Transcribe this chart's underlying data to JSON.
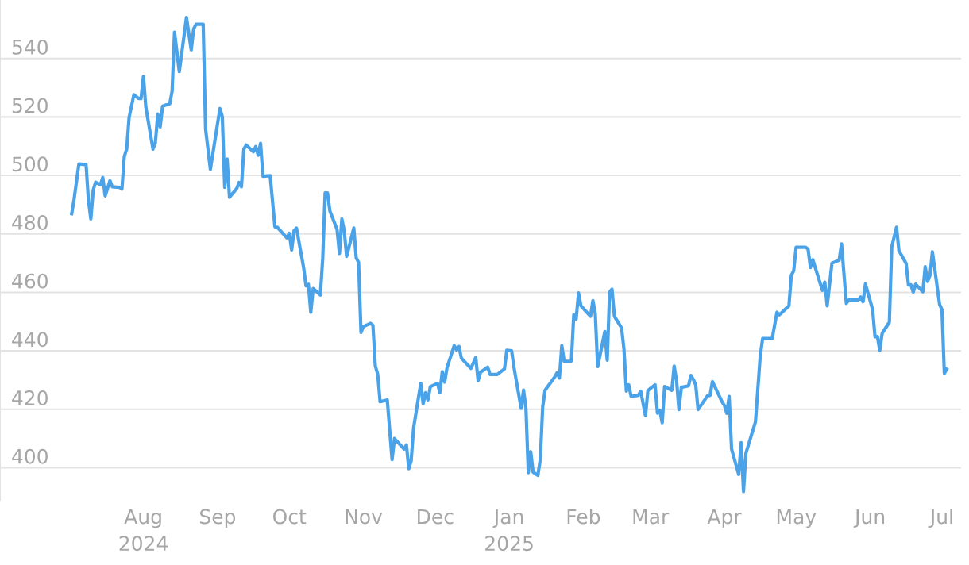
{
  "chart_data": {
    "type": "line",
    "x": [
      "2024-07-02",
      "2024-07-03",
      "2024-07-05",
      "2024-07-08",
      "2024-07-09",
      "2024-07-10",
      "2024-07-11",
      "2024-07-12",
      "2024-07-14",
      "2024-07-15",
      "2024-07-16",
      "2024-07-18",
      "2024-07-19",
      "2024-07-22",
      "2024-07-23",
      "2024-07-24",
      "2024-07-25",
      "2024-07-26",
      "2024-07-28",
      "2024-07-30",
      "2024-07-31",
      "2024-08-01",
      "2024-08-02",
      "2024-08-05",
      "2024-08-06",
      "2024-08-07",
      "2024-08-08",
      "2024-08-09",
      "2024-08-12",
      "2024-08-13",
      "2024-08-14",
      "2024-08-16",
      "2024-08-19",
      "2024-08-21",
      "2024-08-22",
      "2024-08-23",
      "2024-08-26",
      "2024-08-27",
      "2024-08-29",
      "2024-09-02",
      "2024-09-03",
      "2024-09-04",
      "2024-09-05",
      "2024-09-06",
      "2024-09-09",
      "2024-09-10",
      "2024-09-11",
      "2024-09-12",
      "2024-09-13",
      "2024-09-16",
      "2024-09-17",
      "2024-09-18",
      "2024-09-19",
      "2024-09-20",
      "2024-09-23",
      "2024-09-25",
      "2024-09-26",
      "2024-09-30",
      "2024-10-01",
      "2024-10-02",
      "2024-10-03",
      "2024-10-04",
      "2024-10-07",
      "2024-10-08",
      "2024-10-09",
      "2024-10-10",
      "2024-10-11",
      "2024-10-14",
      "2024-10-15",
      "2024-10-16",
      "2024-10-17",
      "2024-10-18",
      "2024-10-21",
      "2024-10-22",
      "2024-10-23",
      "2024-10-24",
      "2024-10-25",
      "2024-10-28",
      "2024-10-29",
      "2024-10-30",
      "2024-10-31",
      "2024-11-01",
      "2024-11-04",
      "2024-11-05",
      "2024-11-06",
      "2024-11-07",
      "2024-11-08",
      "2024-11-11",
      "2024-11-13",
      "2024-11-14",
      "2024-11-18",
      "2024-11-19",
      "2024-11-20",
      "2024-11-21",
      "2024-11-22",
      "2024-11-25",
      "2024-11-26",
      "2024-11-27",
      "2024-11-28",
      "2024-11-29",
      "2024-12-02",
      "2024-12-03",
      "2024-12-04",
      "2024-12-05",
      "2024-12-06",
      "2024-12-09",
      "2024-12-10",
      "2024-12-11",
      "2024-12-12",
      "2024-12-16",
      "2024-12-18",
      "2024-12-19",
      "2024-12-20",
      "2024-12-23",
      "2024-12-24",
      "2024-12-27",
      "2024-12-30",
      "2024-12-31",
      "2025-01-02",
      "2025-01-03",
      "2025-01-06",
      "2025-01-07",
      "2025-01-08",
      "2025-01-09",
      "2025-01-10",
      "2025-01-11",
      "2025-01-13",
      "2025-01-14",
      "2025-01-15",
      "2025-01-16",
      "2025-01-20",
      "2025-01-21",
      "2025-01-22",
      "2025-01-23",
      "2025-01-24",
      "2025-01-27",
      "2025-01-28",
      "2025-01-29",
      "2025-01-30",
      "2025-01-31",
      "2025-02-04",
      "2025-02-05",
      "2025-02-06",
      "2025-02-07",
      "2025-02-10",
      "2025-02-11",
      "2025-02-12",
      "2025-02-13",
      "2025-02-14",
      "2025-02-17",
      "2025-02-18",
      "2025-02-19",
      "2025-02-20",
      "2025-02-21",
      "2025-02-24",
      "2025-02-25",
      "2025-02-27",
      "2025-02-28",
      "2025-03-03",
      "2025-03-04",
      "2025-03-05",
      "2025-03-06",
      "2025-03-07",
      "2025-03-10",
      "2025-03-11",
      "2025-03-12",
      "2025-03-13",
      "2025-03-14",
      "2025-03-17",
      "2025-03-18",
      "2025-03-19",
      "2025-03-20",
      "2025-03-21",
      "2025-03-24",
      "2025-03-25",
      "2025-03-26",
      "2025-03-27",
      "2025-03-31",
      "2025-04-01",
      "2025-04-02",
      "2025-04-03",
      "2025-04-04",
      "2025-04-07",
      "2025-04-08",
      "2025-04-09",
      "2025-04-10",
      "2025-04-14",
      "2025-04-16",
      "2025-04-17",
      "2025-04-21",
      "2025-04-23",
      "2025-04-24",
      "2025-04-28",
      "2025-04-29",
      "2025-04-30",
      "2025-05-01",
      "2025-05-05",
      "2025-05-06",
      "2025-05-07",
      "2025-05-08",
      "2025-05-09",
      "2025-05-12",
      "2025-05-13",
      "2025-05-14",
      "2025-05-16",
      "2025-05-19",
      "2025-05-20",
      "2025-05-22",
      "2025-05-23",
      "2025-05-27",
      "2025-05-28",
      "2025-05-29",
      "2025-05-30",
      "2025-06-02",
      "2025-06-03",
      "2025-06-04",
      "2025-06-05",
      "2025-06-06",
      "2025-06-09",
      "2025-06-10",
      "2025-06-12",
      "2025-06-13",
      "2025-06-16",
      "2025-06-17",
      "2025-06-18",
      "2025-06-19",
      "2025-06-20",
      "2025-06-23",
      "2025-06-24",
      "2025-06-25",
      "2025-06-26",
      "2025-06-27",
      "2025-06-30",
      "2025-07-01",
      "2025-07-02",
      "2025-07-03"
    ],
    "values": [
      486.9,
      491.9,
      503.9,
      503.7,
      491.5,
      485.1,
      495,
      497.7,
      496.8,
      499.3,
      493,
      498.2,
      496.1,
      495.9,
      495.3,
      506.5,
      509,
      519.8,
      527.6,
      526.3,
      526.3,
      533.9,
      523.4,
      509,
      511.2,
      521,
      516.6,
      523.7,
      524.5,
      528.8,
      549,
      535.5,
      554,
      542.9,
      550.1,
      551.7,
      551.7,
      515.8,
      502.1,
      522.9,
      520.1,
      495.9,
      505.6,
      492.5,
      495.5,
      497.6,
      496.1,
      509,
      510.4,
      508.1,
      509.9,
      506.9,
      511,
      499.7,
      499.9,
      482.4,
      482.3,
      478.6,
      480.2,
      474.5,
      481.1,
      482,
      468.5,
      462.2,
      462.8,
      453.2,
      461.3,
      459.1,
      471.6,
      494,
      494,
      487.8,
      481.5,
      473.3,
      485.1,
      481.1,
      472.3,
      482,
      471.8,
      470.3,
      446.3,
      448.3,
      449.4,
      448.7,
      434.8,
      432,
      422.6,
      423.2,
      402.8,
      410,
      406.4,
      407.8,
      399.7,
      402.4,
      413.6,
      428.9,
      421.9,
      425.7,
      423.2,
      427.7,
      428.9,
      425.7,
      432.9,
      429.3,
      434.3,
      441.8,
      440.3,
      441.5,
      437.5,
      434,
      437.7,
      429.8,
      432.7,
      434.4,
      431.9,
      431.9,
      433.8,
      440.2,
      440,
      434.3,
      420.3,
      426.6,
      420.3,
      398.3,
      405.5,
      398.5,
      397.4,
      402.8,
      420.8,
      426.5,
      431,
      432.5,
      430.7,
      441.8,
      436.4,
      436.5,
      452.3,
      450.9,
      459.8,
      455.4,
      451.8,
      457.2,
      452.7,
      434.6,
      446.6,
      436.8,
      460.1,
      461.1,
      451.8,
      447.8,
      440.6,
      426.2,
      428.4,
      424.4,
      424.8,
      426.2,
      417.8,
      426.4,
      428.4,
      418.7,
      419.6,
      415.4,
      427.8,
      426.5,
      434.8,
      429.8,
      419.9,
      427.5,
      428,
      431.6,
      430.2,
      428.4,
      419.9,
      423.5,
      424.7,
      424.7,
      429.5,
      422.6,
      421.3,
      418.6,
      424.4,
      406.4,
      397.7,
      408.6,
      391.9,
      405,
      415.7,
      438.3,
      444.2,
      444.2,
      453.2,
      452.3,
      455.4,
      465.8,
      467.4,
      475.4,
      475.4,
      474.8,
      468.5,
      471.2,
      468.5,
      460.7,
      463.5,
      455.4,
      470,
      471,
      476.6,
      456.2,
      457.4,
      457.4,
      458.4,
      456.8,
      462.9,
      454.1,
      444.8,
      444.9,
      440.2,
      446,
      449.8,
      475.5,
      482.3,
      474.3,
      469.9,
      462.5,
      462.6,
      460.1,
      462.8,
      460.2,
      468.8,
      463.7,
      465.8,
      473.9,
      455.9,
      454.1,
      432.3,
      433.7
    ],
    "color": "#4aa3e8",
    "xlim": [
      "2024-06-02",
      "2025-07-09"
    ],
    "xticks": [
      {
        "value": "2024-08-01",
        "label": "Aug\n2024"
      },
      {
        "value": "2024-09-01",
        "label": "Sep"
      },
      {
        "value": "2024-10-01",
        "label": "Oct"
      },
      {
        "value": "2024-11-01",
        "label": "Nov"
      },
      {
        "value": "2024-12-01",
        "label": "Dec"
      },
      {
        "value": "2025-01-01",
        "label": "Jan\n2025"
      },
      {
        "value": "2025-02-01",
        "label": "Feb"
      },
      {
        "value": "2025-03-01",
        "label": "Mar"
      },
      {
        "value": "2025-04-01",
        "label": "Apr"
      },
      {
        "value": "2025-05-01",
        "label": "May"
      },
      {
        "value": "2025-06-01",
        "label": "Jun"
      },
      {
        "value": "2025-07-01",
        "label": "Jul"
      }
    ],
    "ylim": [
      389,
      560
    ],
    "yticks": [
      400,
      420,
      440,
      460,
      480,
      500,
      520,
      540
    ],
    "grid": "y",
    "marker": "none",
    "line_style": "solid"
  }
}
